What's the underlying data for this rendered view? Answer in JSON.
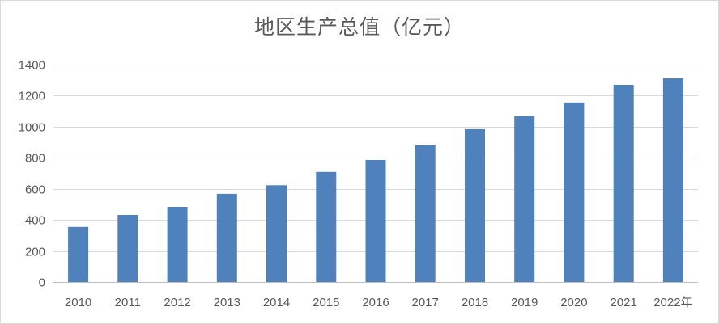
{
  "chart_data": {
    "type": "bar",
    "title": "地区生产总值（亿元）",
    "xlabel": "",
    "ylabel": "",
    "categories": [
      "2010",
      "2011",
      "2012",
      "2013",
      "2014",
      "2015",
      "2016",
      "2017",
      "2018",
      "2019",
      "2020",
      "2021",
      "2022年"
    ],
    "values": [
      355,
      432,
      484,
      568,
      623,
      709,
      786,
      880,
      984,
      1067,
      1156,
      1270,
      1312
    ],
    "ylim": [
      0,
      1400
    ],
    "yticks": [
      "0",
      "200",
      "400",
      "600",
      "800",
      "1000",
      "1200",
      "1400"
    ],
    "grid": true,
    "legend": "none",
    "colors": {
      "bar": "#4f81bd"
    }
  }
}
